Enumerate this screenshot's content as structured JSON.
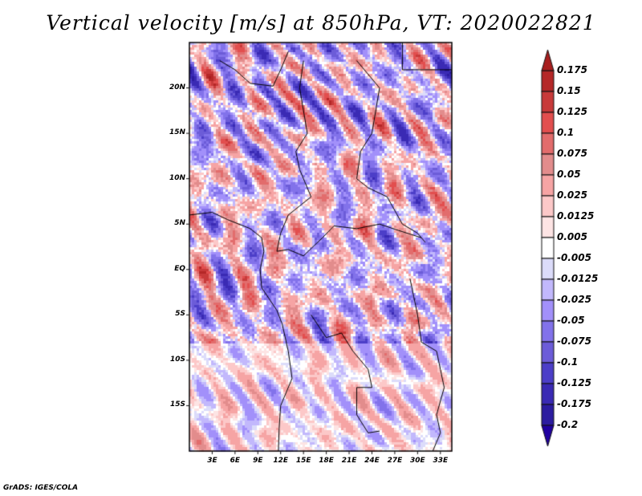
{
  "title": "Vertical velocity [m/s] at 850hPa, VT: 2020022821",
  "footer": "GrADS: IGES/COLA",
  "chart_data": {
    "type": "heatmap",
    "title": "Vertical velocity [m/s] at 850hPa, VT: 2020022821",
    "variable": "Vertical velocity",
    "units": "m/s",
    "level": "850hPa",
    "valid_time": "2020022821",
    "lon_range": [
      0,
      34.5
    ],
    "lat_range": [
      -20,
      25
    ],
    "x_ticks": [
      "3E",
      "6E",
      "9E",
      "12E",
      "15E",
      "18E",
      "21E",
      "24E",
      "27E",
      "30E",
      "33E"
    ],
    "x_tick_values": [
      3,
      6,
      9,
      12,
      15,
      18,
      21,
      24,
      27,
      30,
      33
    ],
    "y_ticks": [
      "20N",
      "15N",
      "10N",
      "5N",
      "EQ",
      "5S",
      "10S",
      "15S"
    ],
    "y_tick_values": [
      20,
      15,
      10,
      5,
      0,
      -5,
      -10,
      -15
    ],
    "colorbar": {
      "labels": [
        "0.175",
        "0.15",
        "0.125",
        "0.1",
        "0.075",
        "0.05",
        "0.025",
        "0.0125",
        "0.005",
        "-0.005",
        "-0.0125",
        "-0.025",
        "-0.05",
        "-0.075",
        "-0.1",
        "-0.125",
        "-0.175",
        "-0.2"
      ],
      "levels": [
        0.175,
        0.15,
        0.125,
        0.1,
        0.075,
        0.05,
        0.025,
        0.0125,
        0.005,
        -0.005,
        -0.0125,
        -0.025,
        -0.05,
        -0.075,
        -0.1,
        -0.125,
        -0.175,
        -0.2
      ],
      "colors": [
        "#a81e1e",
        "#b52828",
        "#c83a3a",
        "#e24e4e",
        "#e26c6c",
        "#e28c8c",
        "#f6a4a4",
        "#fcc8c8",
        "#fde4e4",
        "#ffffff",
        "#dcdcfa",
        "#c2b8fc",
        "#a290fa",
        "#8272ea",
        "#6c5cd8",
        "#4c3ec8",
        "#3a2ab4",
        "#2c1ca0",
        "#2000a0"
      ]
    }
  }
}
